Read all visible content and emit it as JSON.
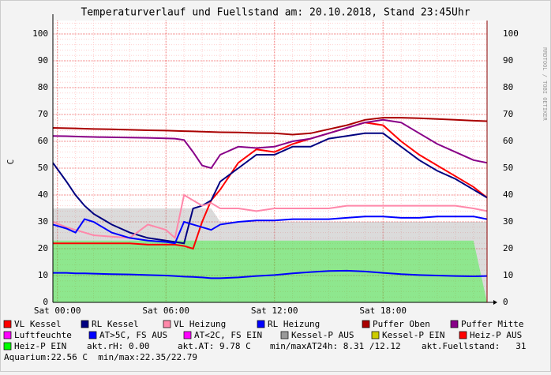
{
  "chart_data": {
    "type": "line",
    "title": "Temperaturverlauf und Fuellstand am: 20.10.2018, Stand 23:45Uhr",
    "y_label": "C",
    "watermark": "RRDTOOL / TOBI OETIKER",
    "xlim": [
      -0.25,
      23.75
    ],
    "xticks": [
      {
        "value": 0,
        "label": "Sat 00:00"
      },
      {
        "value": 6,
        "label": "Sat 06:00"
      },
      {
        "value": 12,
        "label": "Sat 12:00"
      },
      {
        "value": 18,
        "label": "Sat 18:00"
      }
    ],
    "ylim": [
      0,
      105
    ],
    "yticks": [
      0,
      10,
      20,
      30,
      40,
      50,
      60,
      70,
      80,
      90,
      100
    ],
    "grid": true,
    "x": [
      -0.25,
      0.5,
      1,
      1.5,
      2,
      3,
      4,
      5,
      6,
      6.5,
      7,
      7.5,
      8,
      8.5,
      9,
      10,
      11,
      12,
      13,
      14,
      15,
      16,
      17,
      18,
      19,
      20,
      21,
      22,
      23,
      23.75
    ],
    "series": [
      {
        "name": "VL Kessel",
        "color": "#ff0000",
        "kind": "line",
        "values": [
          22,
          22,
          22,
          22,
          22,
          22,
          22,
          21.5,
          21.5,
          21.5,
          21,
          20,
          30,
          38,
          42,
          52,
          57,
          56,
          59,
          61,
          63,
          65,
          67,
          66,
          60,
          55,
          51,
          47,
          43,
          39
        ]
      },
      {
        "name": "RL Kessel",
        "color": "#000080",
        "kind": "line",
        "values": [
          52,
          45,
          40,
          36,
          33,
          29,
          26,
          24,
          23,
          22.5,
          22,
          35,
          36,
          38,
          45,
          50,
          55,
          55,
          58,
          58,
          61,
          62,
          63,
          63,
          58,
          53,
          49,
          46,
          42,
          39
        ]
      },
      {
        "name": "VL Heizung",
        "color": "#ff88aa",
        "kind": "line",
        "values": [
          30,
          28,
          27,
          26,
          25,
          24.5,
          24,
          29,
          27,
          24,
          40,
          38,
          36,
          37,
          35,
          35,
          34,
          35,
          35,
          35,
          35,
          36,
          36,
          36,
          36,
          36,
          36,
          36,
          35,
          34
        ]
      },
      {
        "name": "RL Heizung",
        "color": "#0000ff",
        "kind": "line",
        "values": [
          29,
          27.5,
          26,
          31,
          30,
          26,
          24,
          23,
          22.5,
          22,
          30,
          29,
          28,
          27,
          29,
          30,
          30.5,
          30.5,
          31,
          31,
          31,
          31.5,
          32,
          32,
          31.5,
          31.5,
          32,
          32,
          32,
          31
        ]
      },
      {
        "name": "Puffer Oben",
        "color": "#aa0000",
        "kind": "line",
        "values": [
          65,
          64.9,
          64.8,
          64.7,
          64.6,
          64.5,
          64.3,
          64.1,
          64,
          63.9,
          63.8,
          63.7,
          63.6,
          63.5,
          63.4,
          63.3,
          63.1,
          63,
          62.5,
          63,
          64.5,
          66,
          68,
          68.8,
          68.8,
          68.6,
          68.3,
          68,
          67.7,
          67.5
        ]
      },
      {
        "name": "Puffer Mitte",
        "color": "#880088",
        "kind": "line",
        "values": [
          62,
          61.9,
          61.8,
          61.7,
          61.6,
          61.5,
          61.4,
          61.3,
          61.1,
          61,
          60.5,
          56,
          51,
          50,
          55,
          58,
          57.5,
          58,
          60,
          61,
          63,
          65,
          67,
          68,
          67,
          63,
          59,
          56,
          53,
          52
        ]
      },
      {
        "name": "Luftfeuchte",
        "color": "#ff00ff",
        "kind": "line"
      },
      {
        "name": "AT>5C, FS AUS",
        "color": "#0000ff",
        "kind": "line",
        "values": [
          11,
          11,
          10.8,
          10.8,
          10.7,
          10.5,
          10.4,
          10.2,
          10,
          9.8,
          9.6,
          9.5,
          9.3,
          9,
          9,
          9.3,
          9.8,
          10.2,
          10.8,
          11.3,
          11.7,
          11.8,
          11.5,
          11,
          10.5,
          10.2,
          10,
          9.8,
          9.7,
          9.8
        ]
      },
      {
        "name": "AT<2C, FS EIN",
        "color": "#ff00ff",
        "kind": "line"
      },
      {
        "name": "Kessel-P AUS",
        "color": "#999999",
        "kind": "area",
        "values": [
          35,
          35,
          35,
          35,
          35,
          35,
          35,
          35,
          35,
          35,
          35,
          35,
          35,
          35,
          30,
          30,
          30,
          30,
          30,
          30,
          30,
          30,
          30,
          30,
          30,
          30,
          30,
          30,
          30,
          30
        ]
      },
      {
        "name": "Kessel-P EIN",
        "color": "#cccc00",
        "kind": "area"
      },
      {
        "name": "Heiz-P AUS",
        "color": "#ff0000",
        "kind": "area"
      },
      {
        "name": "Heiz-P EIN",
        "color": "#00ff00",
        "kind": "area",
        "values": [
          23,
          23,
          23,
          23,
          23,
          23,
          23,
          23,
          23,
          23,
          23,
          23,
          23,
          23,
          23,
          23,
          23,
          23,
          23,
          23,
          23,
          23,
          23,
          23,
          23,
          23,
          23,
          23,
          23,
          0
        ]
      }
    ],
    "notes": [
      "akt.rH: 0.00",
      "akt.AT: 9.78 C",
      "min/maxAT24h: 8.31 /12.12",
      "akt.Fuellstand:   31",
      "Aquarium:22.56 C  min/max:22.35/22.79"
    ]
  }
}
